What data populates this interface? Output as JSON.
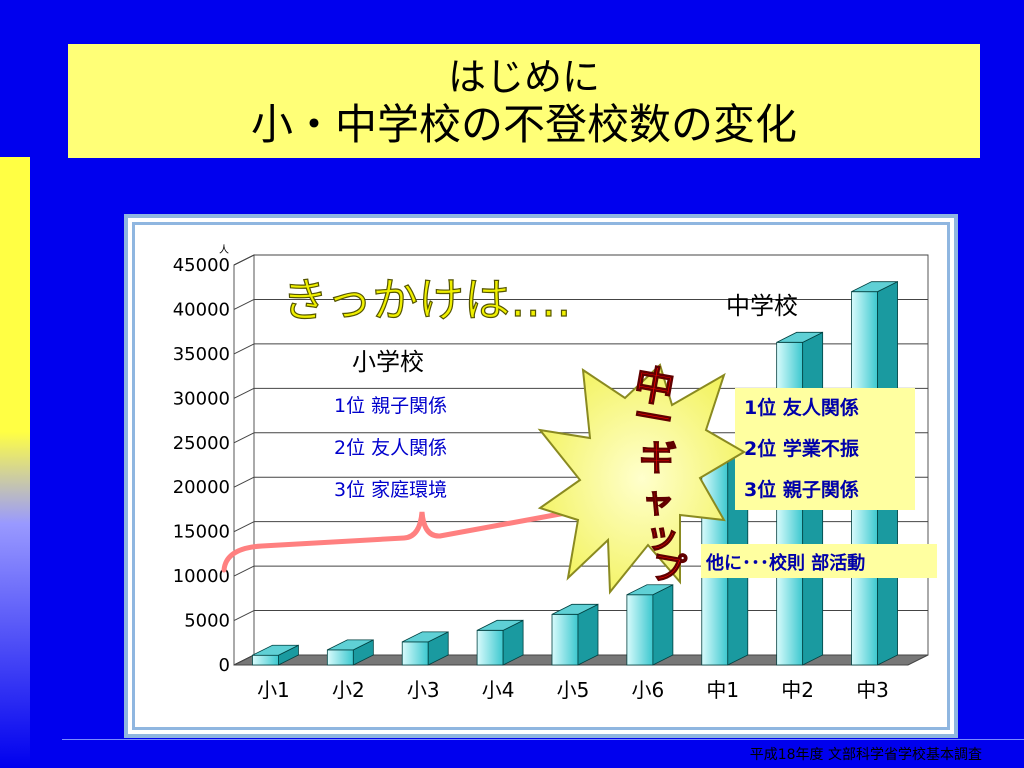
{
  "title": {
    "line1": "はじめに",
    "line2": "小・中学校の不登校数の変化"
  },
  "chart_data": {
    "type": "bar",
    "categories": [
      "小1",
      "小2",
      "小3",
      "小4",
      "小5",
      "小6",
      "中1",
      "中2",
      "中3"
    ],
    "values": [
      1100,
      1700,
      2600,
      3900,
      5700,
      7900,
      23500,
      36300,
      42000
    ],
    "ylim": [
      0,
      45000
    ],
    "yticks": [
      0,
      5000,
      10000,
      15000,
      20000,
      25000,
      30000,
      35000,
      40000,
      45000
    ],
    "yunit": "人",
    "grid": true,
    "colors": {
      "bar_front": "#7fe0e4",
      "bar_side": "#1a9aa0",
      "bar_top": "#5fd0d5",
      "floor": "#777777"
    }
  },
  "annotations": {
    "trigger": "きっかけは‥‥",
    "elementary_label": "小学校",
    "elementary_reasons": [
      "1位  親子関係",
      "2位  友人関係",
      "3位  家庭環境"
    ],
    "middle_label": "中学校",
    "middle_reasons": [
      "1位  友人関係",
      "2位  学業不振",
      "3位  親子関係"
    ],
    "other": "他に･･･校則  部活動",
    "gap_chars": [
      "中",
      "一",
      "ギ",
      "ャ",
      "ッ",
      "プ"
    ]
  },
  "source": "平成18年度  文部科学省学校基本調査"
}
